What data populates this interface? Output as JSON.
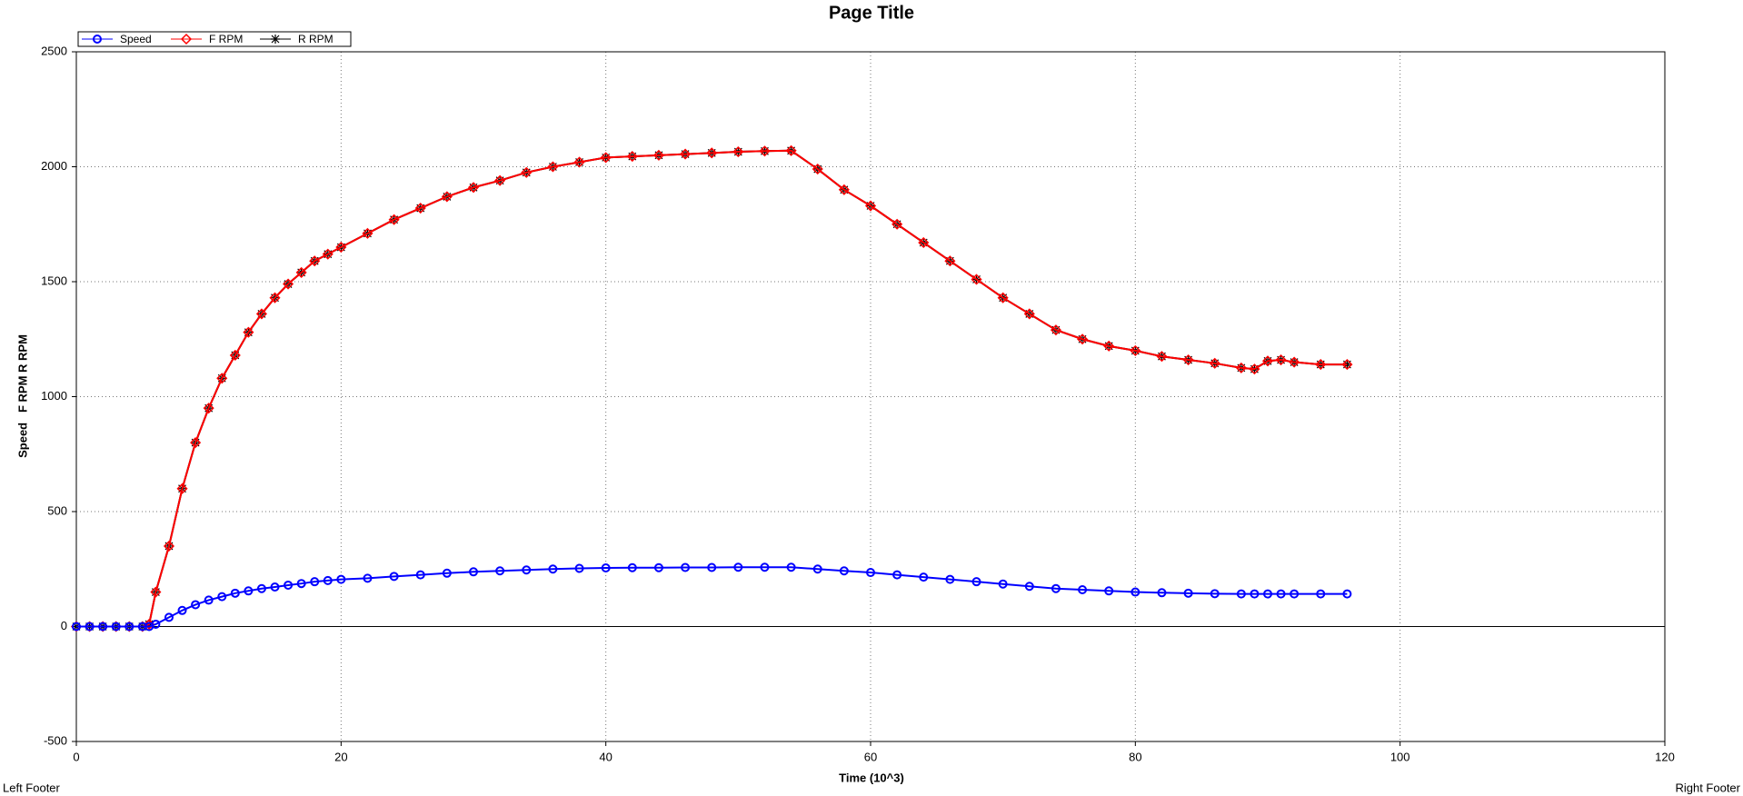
{
  "chart_data": {
    "type": "line",
    "title": "Page Title",
    "x_label": "Time (10^3)",
    "y_label": "Speed   F RPM R RPM",
    "footer_left": "Left Footer",
    "footer_right": "Right Footer",
    "xlim": [
      0,
      120
    ],
    "xticks": [
      0,
      20,
      40,
      60,
      80,
      100,
      120
    ],
    "ylim": [
      -500,
      2500
    ],
    "yticks": [
      -500,
      0,
      500,
      1000,
      1500,
      2000,
      2500
    ],
    "grid": true,
    "legend": "top-left",
    "x": [
      0,
      1,
      2,
      3,
      4,
      5,
      5.5,
      6,
      7,
      8,
      9,
      10,
      11,
      12,
      13,
      14,
      15,
      16,
      17,
      18,
      19,
      20,
      22,
      24,
      26,
      28,
      30,
      32,
      34,
      36,
      38,
      40,
      42,
      44,
      46,
      48,
      50,
      52,
      54,
      56,
      58,
      60,
      62,
      64,
      66,
      68,
      70,
      72,
      74,
      76,
      78,
      80,
      82,
      84,
      86,
      88,
      89,
      90,
      91,
      92,
      94,
      96
    ],
    "series": [
      {
        "name": "Speed",
        "color": "#0000ff",
        "marker": "circle",
        "values": [
          0,
          0,
          0,
          0,
          0,
          0,
          0,
          10,
          40,
          70,
          95,
          115,
          130,
          145,
          155,
          165,
          172,
          180,
          187,
          195,
          200,
          205,
          210,
          218,
          225,
          232,
          238,
          242,
          246,
          250,
          253,
          255,
          256,
          256,
          257,
          257,
          258,
          258,
          258,
          250,
          242,
          235,
          225,
          215,
          205,
          195,
          185,
          175,
          165,
          160,
          155,
          150,
          147,
          145,
          143,
          142,
          142,
          142,
          142,
          142,
          142,
          142
        ]
      },
      {
        "name": "F RPM",
        "color": "#ff0000",
        "marker": "diamond",
        "values": [
          0,
          0,
          0,
          0,
          0,
          0,
          10,
          150,
          350,
          600,
          800,
          950,
          1080,
          1180,
          1280,
          1360,
          1430,
          1490,
          1540,
          1590,
          1620,
          1650,
          1710,
          1770,
          1820,
          1870,
          1910,
          1940,
          1975,
          2000,
          2020,
          2040,
          2045,
          2050,
          2055,
          2060,
          2065,
          2068,
          2070,
          1990,
          1900,
          1830,
          1750,
          1670,
          1590,
          1510,
          1430,
          1360,
          1290,
          1250,
          1220,
          1200,
          1175,
          1160,
          1145,
          1125,
          1120,
          1155,
          1160,
          1150,
          1140,
          1140
        ]
      },
      {
        "name": "R RPM",
        "color": "#000000",
        "marker": "asterisk",
        "values": [
          0,
          0,
          0,
          0,
          0,
          0,
          10,
          150,
          350,
          600,
          800,
          950,
          1080,
          1180,
          1280,
          1360,
          1430,
          1490,
          1540,
          1590,
          1620,
          1650,
          1710,
          1770,
          1820,
          1870,
          1910,
          1940,
          1975,
          2000,
          2020,
          2040,
          2045,
          2050,
          2055,
          2060,
          2065,
          2068,
          2070,
          1990,
          1900,
          1830,
          1750,
          1670,
          1590,
          1510,
          1430,
          1360,
          1290,
          1250,
          1220,
          1200,
          1175,
          1160,
          1145,
          1125,
          1120,
          1155,
          1160,
          1150,
          1140,
          1140
        ]
      }
    ]
  }
}
